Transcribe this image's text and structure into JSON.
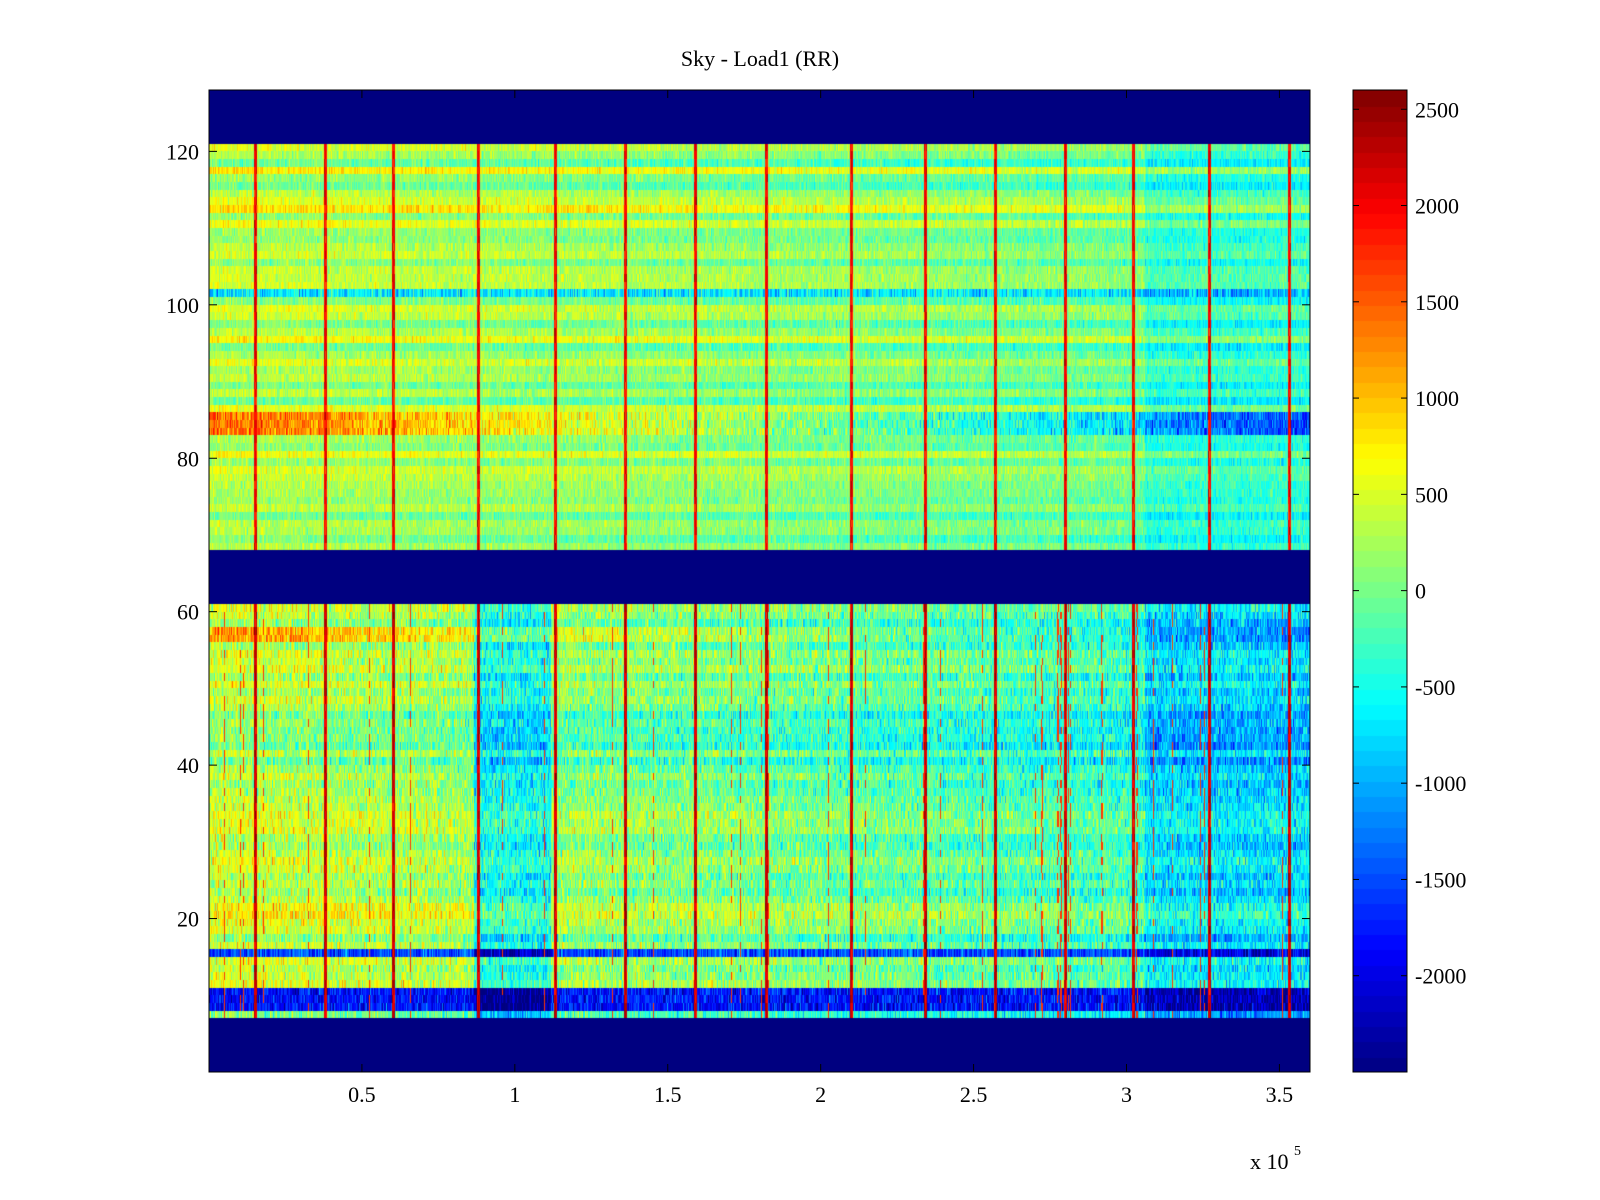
{
  "chart_data": {
    "type": "heatmap",
    "title": "Sky - Load1 (RR)",
    "xlabel": "",
    "ylabel": "",
    "x_exponent_label": {
      "base": "x 10",
      "exp": "5"
    },
    "xlim": [
      0,
      360000
    ],
    "ylim": [
      0,
      128
    ],
    "xticks": [
      {
        "value": 50000,
        "label": "0.5"
      },
      {
        "value": 100000,
        "label": "1"
      },
      {
        "value": 150000,
        "label": "1.5"
      },
      {
        "value": 200000,
        "label": "2"
      },
      {
        "value": 250000,
        "label": "2.5"
      },
      {
        "value": 300000,
        "label": "3"
      },
      {
        "value": 350000,
        "label": "3.5"
      }
    ],
    "yticks": [
      {
        "value": 20,
        "label": "20"
      },
      {
        "value": 40,
        "label": "40"
      },
      {
        "value": 60,
        "label": "60"
      },
      {
        "value": 80,
        "label": "80"
      },
      {
        "value": 100,
        "label": "100"
      },
      {
        "value": 120,
        "label": "120"
      }
    ],
    "colormap": "jet",
    "clim": [
      -2500,
      2600
    ],
    "colorbar_ticks": [
      {
        "value": 2500,
        "label": "2500"
      },
      {
        "value": 2000,
        "label": "2000"
      },
      {
        "value": 1500,
        "label": "1500"
      },
      {
        "value": 1000,
        "label": "1000"
      },
      {
        "value": 500,
        "label": "500"
      },
      {
        "value": 0,
        "label": "0"
      },
      {
        "value": -500,
        "label": "-500"
      },
      {
        "value": -1000,
        "label": "-1000"
      },
      {
        "value": -1500,
        "label": "-1500"
      },
      {
        "value": -2000,
        "label": "-2000"
      }
    ],
    "masked_value": -2500,
    "masked_channel_ranges": [
      [
        0,
        7
      ],
      [
        61,
        68
      ],
      [
        121,
        128
      ]
    ],
    "regions": [
      {
        "channels": [
          7,
          61
        ],
        "baseline_early": 400,
        "baseline_late": -300,
        "noise": 500
      },
      {
        "channels": [
          68,
          121
        ],
        "baseline_early": 350,
        "baseline_late": 0,
        "noise": 300
      }
    ],
    "vertical_spike_x": [
      15000,
      38000,
      60000,
      88000,
      113000,
      136000,
      159000,
      182000,
      210000,
      234000,
      257000,
      280000,
      302000,
      327000,
      353000
    ],
    "spike_value": 2200,
    "hot_channel_bands": [
      {
        "channels": [
          83,
          86
        ],
        "value_early": 1500,
        "value_late": -1200
      },
      {
        "channels": [
          56,
          58
        ],
        "value_early": 1200,
        "value_late": -800
      }
    ],
    "cold_channel_bands": [
      {
        "channels": [
          8,
          11
        ],
        "value": -1800
      },
      {
        "channels": [
          15,
          16
        ],
        "value": -1500
      },
      {
        "channels": [
          101,
          102
        ],
        "value": -700
      }
    ],
    "grid": false,
    "colorbar_position": "right"
  }
}
